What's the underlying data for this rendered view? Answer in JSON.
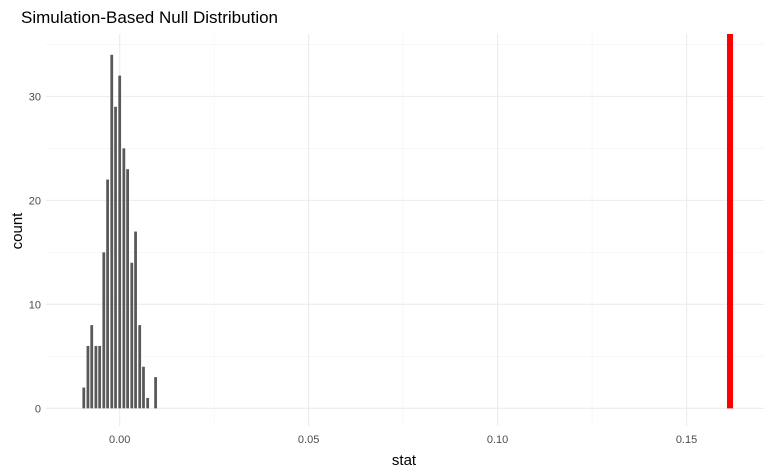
{
  "chart_data": {
    "type": "bar",
    "title": "Simulation-Based Null Distribution",
    "xlabel": "stat",
    "ylabel": "count",
    "xlim": [
      -0.0195,
      0.1705
    ],
    "ylim": [
      -1.7,
      36.0
    ],
    "x_ticks": [
      0.0,
      0.05,
      0.1,
      0.15
    ],
    "x_tick_labels": [
      "0.00",
      "0.05",
      "0.10",
      "0.15"
    ],
    "y_ticks": [
      0,
      10,
      20,
      30
    ],
    "y_tick_labels": [
      "0",
      "10",
      "20",
      "30"
    ],
    "grid": true,
    "legend": "none",
    "bin_width": 0.00105,
    "bins": [
      {
        "x": -0.0095,
        "count": 2
      },
      {
        "x": -0.0084,
        "count": 6
      },
      {
        "x": -0.0074,
        "count": 8
      },
      {
        "x": -0.0063,
        "count": 6
      },
      {
        "x": -0.0053,
        "count": 6
      },
      {
        "x": -0.0042,
        "count": 15
      },
      {
        "x": -0.0032,
        "count": 22
      },
      {
        "x": -0.0021,
        "count": 34
      },
      {
        "x": -0.0011,
        "count": 29
      },
      {
        "x": 0.0,
        "count": 32
      },
      {
        "x": 0.0011,
        "count": 25
      },
      {
        "x": 0.0021,
        "count": 23
      },
      {
        "x": 0.0032,
        "count": 14
      },
      {
        "x": 0.0042,
        "count": 17
      },
      {
        "x": 0.0053,
        "count": 8
      },
      {
        "x": 0.0063,
        "count": 4
      },
      {
        "x": 0.0074,
        "count": 1
      },
      {
        "x": 0.0095,
        "count": 3
      }
    ],
    "observed_stat": 0.1615,
    "bar_color": "#595959",
    "observed_line_color": "#ff0000"
  }
}
